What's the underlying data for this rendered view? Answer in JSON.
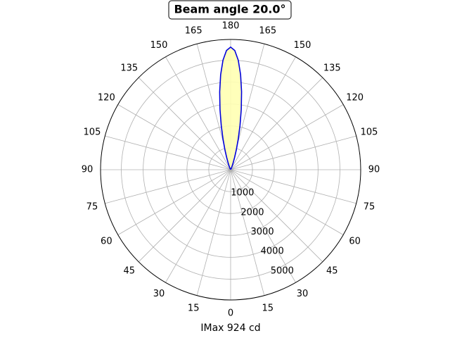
{
  "chart_data": {
    "type": "polar",
    "title": "Beam angle 20.0°",
    "xlabel": "IMax 924 cd",
    "theta": [
      150,
      152,
      154,
      156,
      158,
      160,
      162,
      164,
      166,
      168,
      170,
      172,
      174,
      176,
      178,
      180,
      182,
      184,
      186,
      188,
      190,
      192,
      194,
      196,
      198,
      200,
      202,
      204,
      206,
      208,
      210
    ],
    "values": [
      11,
      24,
      52,
      103,
      196,
      350,
      593,
      950,
      1440,
      2064,
      2800,
      3594,
      4364,
      5012,
      5447,
      5600,
      5447,
      5012,
      4364,
      3594,
      2800,
      2064,
      1440,
      950,
      593,
      350,
      196,
      103,
      52,
      24,
      11
    ],
    "color": "#0000dd",
    "fill_color": "#ffffb3",
    "rlim": [
      0,
      5950
    ],
    "rticks": [
      1000,
      2000,
      3000,
      4000,
      5000
    ],
    "thetaticks": [
      0,
      15,
      30,
      45,
      60,
      75,
      90,
      105,
      120,
      135,
      150,
      165,
      180,
      {
        "value": 195,
        "label": "165"
      },
      {
        "value": 210,
        "label": "150"
      },
      {
        "value": 225,
        "label": "135"
      },
      {
        "value": 240,
        "label": "120"
      },
      {
        "value": 255,
        "label": "105"
      },
      {
        "value": 270,
        "label": "90"
      },
      {
        "value": 285,
        "label": "75"
      },
      {
        "value": 300,
        "label": "60"
      },
      {
        "value": 315,
        "label": "45"
      },
      {
        "value": 330,
        "label": "30"
      },
      {
        "value": 345,
        "label": "15"
      }
    ],
    "grid": true
  }
}
